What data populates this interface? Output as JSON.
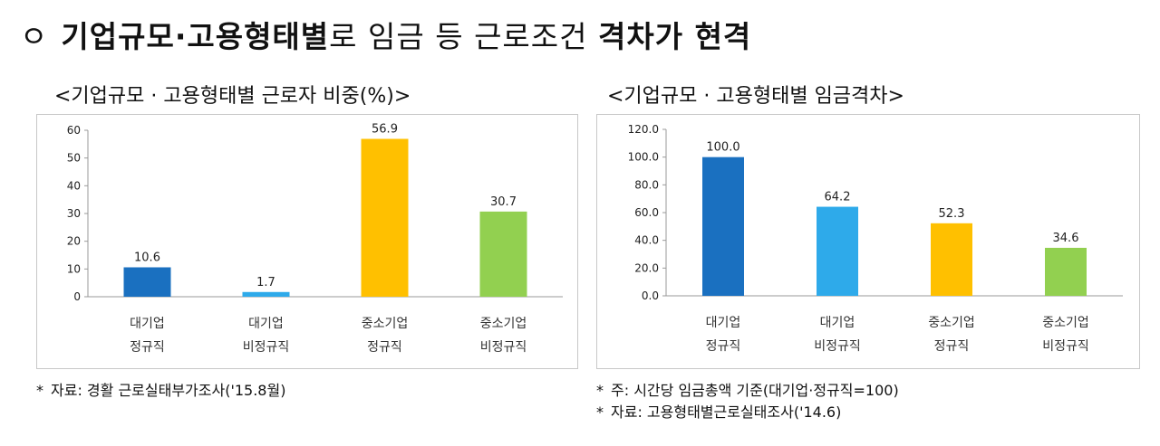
{
  "title": {
    "bullet": "ㅇ",
    "bold1": "기업규모·고용형태별",
    "normal": "로 임금 등 근로조건 ",
    "bold2": "격차가 현격"
  },
  "chart_data": [
    {
      "type": "bar",
      "title": "<기업규모 · 고용형태별 근로자 비중(%)>",
      "categories": [
        [
          "대기업",
          "정규직"
        ],
        [
          "대기업",
          "비정규직"
        ],
        [
          "중소기업",
          "정규직"
        ],
        [
          "중소기업",
          "비정규직"
        ]
      ],
      "values": [
        10.6,
        1.7,
        56.9,
        30.7
      ],
      "value_labels": [
        "10.6",
        "1.7",
        "56.9",
        "30.7"
      ],
      "ylim": [
        0,
        60
      ],
      "yticks": [
        "0",
        "10",
        "20",
        "30",
        "40",
        "50",
        "60"
      ],
      "colors": [
        "#1a70c0",
        "#2eaaea",
        "#ffc000",
        "#92d050"
      ],
      "xlabel": "",
      "ylabel": ""
    },
    {
      "type": "bar",
      "title": "<기업규모 · 고용형태별 임금격차>",
      "categories": [
        [
          "대기업",
          "정규직"
        ],
        [
          "대기업",
          "비정규직"
        ],
        [
          "중소기업",
          "정규직"
        ],
        [
          "중소기업",
          "비정규직"
        ]
      ],
      "values": [
        100.0,
        64.2,
        52.3,
        34.6
      ],
      "value_labels": [
        "100.0",
        "64.2",
        "52.3",
        "34.6"
      ],
      "ylim": [
        0,
        120
      ],
      "yticks": [
        "0.0",
        "20.0",
        "40.0",
        "60.0",
        "80.0",
        "100.0",
        "120.0"
      ],
      "colors": [
        "#1a70c0",
        "#2eaaea",
        "#ffc000",
        "#92d050"
      ],
      "xlabel": "",
      "ylabel": ""
    }
  ],
  "notes": {
    "left": [
      {
        "star": "*",
        "text": "자료:  경활  근로실태부가조사('15.8월)"
      }
    ],
    "right": [
      {
        "star": "*",
        "text": "주:  시간당  임금총액  기준(대기업·정규직=100)"
      },
      {
        "star": "*",
        "text": "자료:  고용형태별근로실태조사('14.6)"
      }
    ]
  }
}
